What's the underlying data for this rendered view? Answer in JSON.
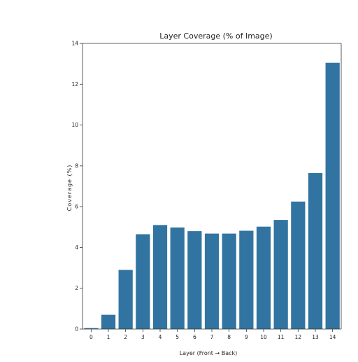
{
  "chart_data": {
    "type": "bar",
    "title": "Layer Coverage (% of Image)",
    "xlabel": "Layer (Front → Back)",
    "ylabel": "Coverage (%)",
    "categories": [
      "0",
      "1",
      "2",
      "3",
      "4",
      "5",
      "6",
      "7",
      "8",
      "9",
      "10",
      "11",
      "12",
      "13",
      "14"
    ],
    "values": [
      0.05,
      0.7,
      2.9,
      4.65,
      5.1,
      4.98,
      4.8,
      4.68,
      4.68,
      4.82,
      5.02,
      5.35,
      6.25,
      7.65,
      13.05
    ],
    "ylim": [
      0,
      14
    ],
    "yticks": [
      "0",
      "2",
      "4",
      "6",
      "8",
      "10",
      "12",
      "14"
    ],
    "bar_color": "#3274a1",
    "grid": false,
    "legend": "none"
  }
}
